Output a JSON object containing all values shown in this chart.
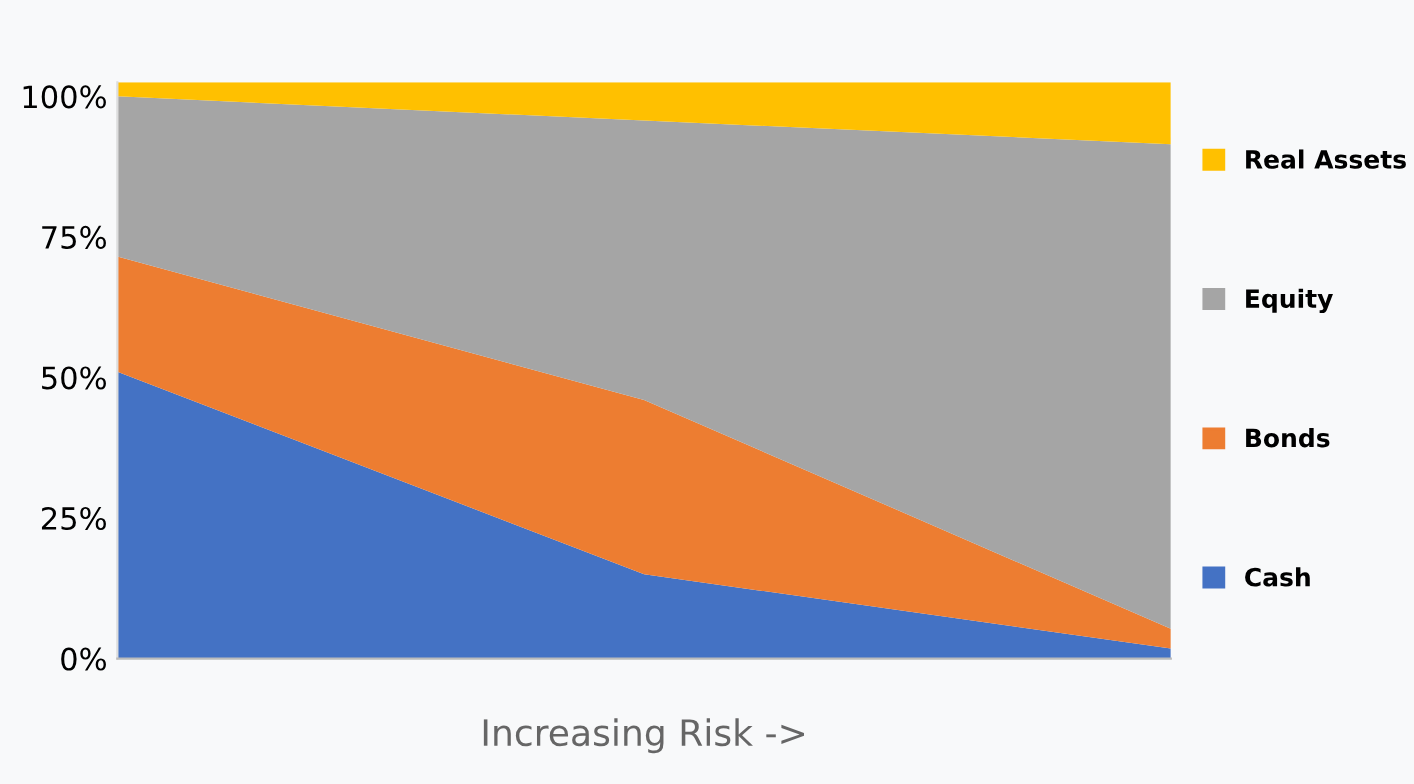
{
  "chart_data": {
    "type": "area",
    "stacked": true,
    "xlabel": "Increasing Risk ->",
    "categories": [
      null,
      null,
      null
    ],
    "series": [
      {
        "name": "Cash",
        "color": "#4472c4",
        "values": [
          51,
          15,
          1.8
        ]
      },
      {
        "name": "Bonds",
        "color": "#ed7d31",
        "values": [
          20.5,
          31,
          3.5
        ]
      },
      {
        "name": "Equity",
        "color": "#a5a5a5",
        "values": [
          28.5,
          49.7,
          86.2
        ]
      },
      {
        "name": "Real Assets",
        "color": "#ffc000",
        "values": [
          2.5,
          6.8,
          11
        ]
      }
    ],
    "ylim": [
      0,
      102.5
    ],
    "yticks": [
      {
        "value": 0,
        "label": "0%"
      },
      {
        "value": 25,
        "label": "25%"
      },
      {
        "value": 50,
        "label": "50%"
      },
      {
        "value": 75,
        "label": "75%"
      },
      {
        "value": 100,
        "label": "100%"
      }
    ],
    "grid": false,
    "legend": "right"
  }
}
